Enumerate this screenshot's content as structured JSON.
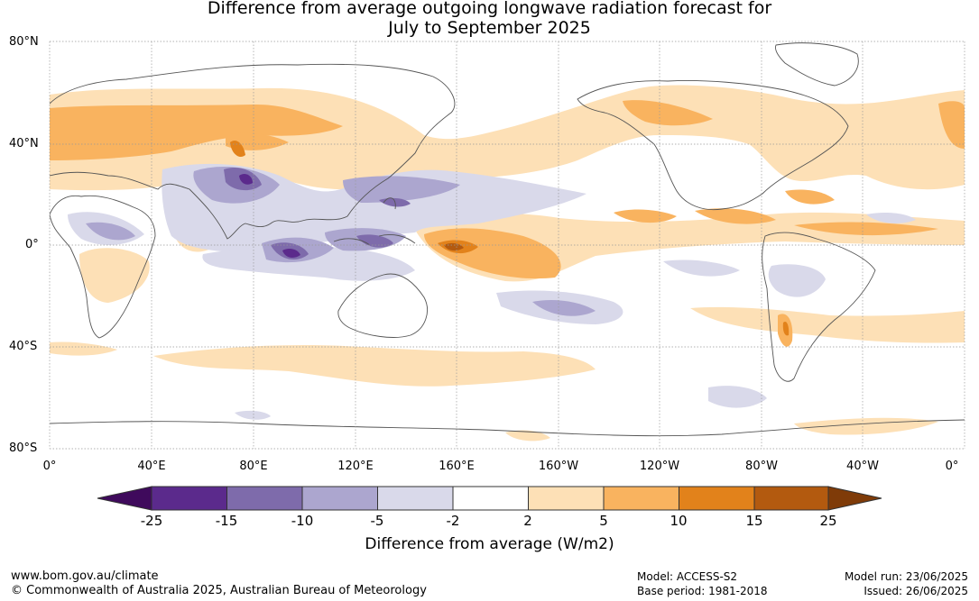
{
  "title_line1": "Difference from average outgoing longwave radiation forecast for",
  "title_line2": "July to September 2025",
  "lat_labels": [
    "80°N",
    "40°N",
    "0°",
    "40°S",
    "80°S"
  ],
  "lon_labels": [
    "0°",
    "40°E",
    "80°E",
    "120°E",
    "160°E",
    "160°W",
    "120°W",
    "80°W",
    "40°W",
    "0°"
  ],
  "colorbar": {
    "ticks": [
      "-25",
      "-15",
      "-10",
      "-5",
      "-2",
      "2",
      "5",
      "10",
      "15",
      "25"
    ],
    "colors": [
      "#3f0a5c",
      "#5b2a8c",
      "#7e6bab",
      "#aca6cf",
      "#d9d9ea",
      "#ffffff",
      "#fde0b6",
      "#f9b35f",
      "#e2821b",
      "#b35a0f",
      "#7f3b08"
    ],
    "label": "Difference from average (W/m2)"
  },
  "footer": {
    "website": "www.bom.gov.au/climate",
    "copyright": "© Commonwealth of Australia 2025, Australian Bureau of Meteorology",
    "model": "Model: ACCESS-S2",
    "base_period": "Base period: 1981-2018",
    "model_run": "Model run: 23/06/2025",
    "issued": "Issued: 26/06/2025"
  }
}
